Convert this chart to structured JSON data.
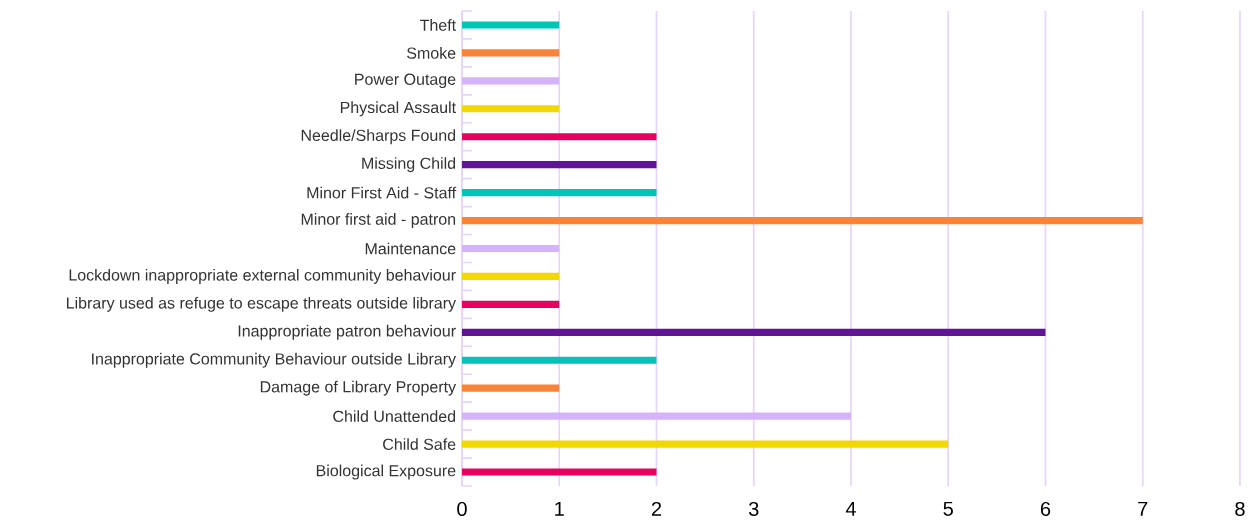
{
  "chart_data": {
    "type": "bar",
    "orientation": "horizontal",
    "categories": [
      "Theft",
      "Smoke",
      "Power Outage",
      "Physical Assault",
      "Needle/Sharps Found",
      "Missing Child",
      "Minor First Aid - Staff",
      "Minor first aid - patron",
      "Maintenance",
      "Lockdown inappropriate external community behaviour",
      "Library used as refuge to escape threats outside library",
      "Inappropriate patron behaviour",
      "Inappropriate Community Behaviour outside Library",
      "Damage of Library Property",
      "Child Unattended",
      "Child Safe",
      "Biological Exposure"
    ],
    "values": [
      1,
      1,
      1,
      1,
      2,
      2,
      2,
      7,
      1,
      1,
      1,
      6,
      2,
      1,
      4,
      5,
      2
    ],
    "colors": [
      "#00c4b8",
      "#f7843a",
      "#d5b3fa",
      "#f2d800",
      "#e8005f",
      "#5e1493",
      "#00c4b8",
      "#f7843a",
      "#d5b3fa",
      "#f2d800",
      "#e8005f",
      "#5e1493",
      "#00c4b8",
      "#f7843a",
      "#d5b3fa",
      "#f2d800",
      "#e8005f"
    ],
    "xlim": [
      0,
      8
    ],
    "xticks": [
      0,
      1,
      2,
      3,
      4,
      5,
      6,
      7,
      8
    ],
    "grid": "x"
  }
}
